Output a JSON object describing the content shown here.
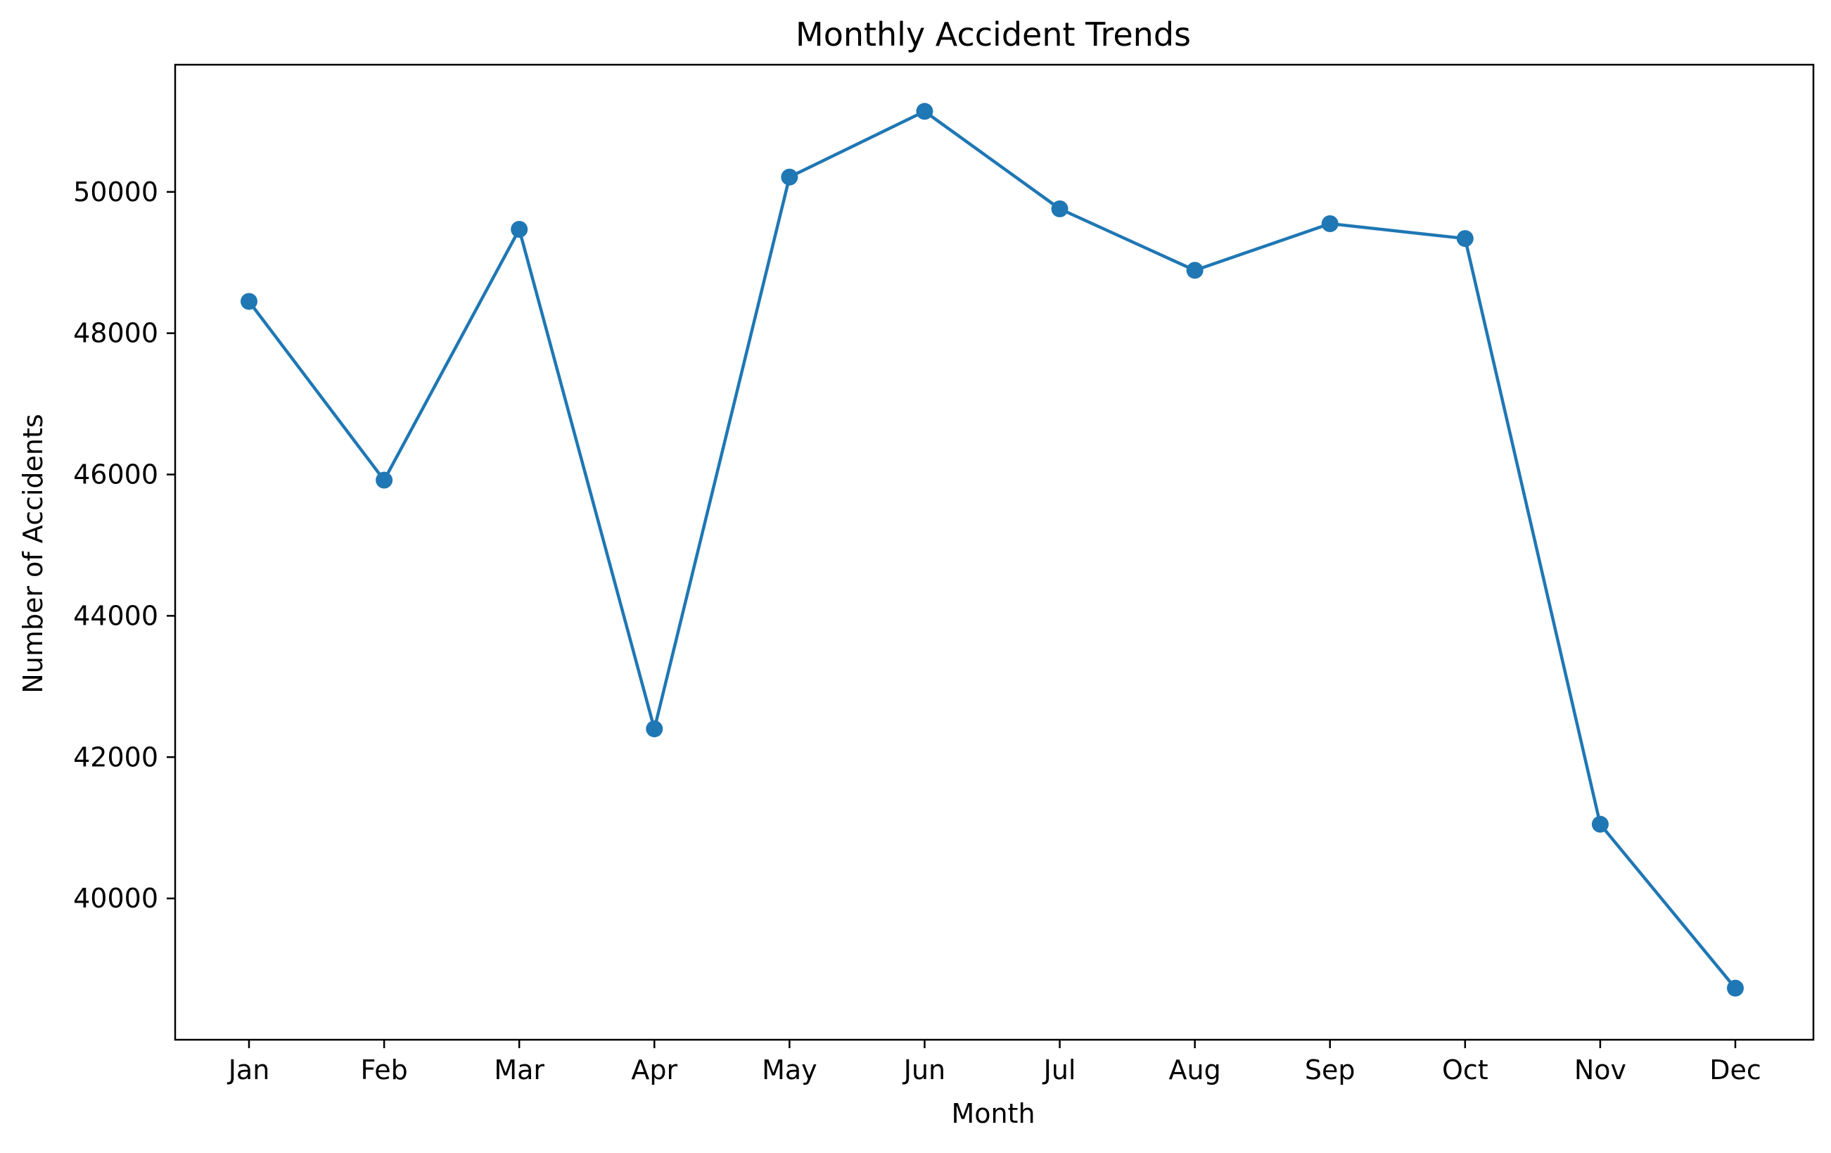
{
  "chart_data": {
    "type": "line",
    "title": "Monthly Accident Trends",
    "xlabel": "Month",
    "ylabel": "Number of Accidents",
    "categories": [
      "Jan",
      "Feb",
      "Mar",
      "Apr",
      "May",
      "Jun",
      "Jul",
      "Aug",
      "Sep",
      "Oct",
      "Nov",
      "Dec"
    ],
    "series": [
      {
        "values": [
          48450,
          45920,
          49470,
          42400,
          50210,
          51140,
          49760,
          48890,
          49550,
          49340,
          41050,
          38730
        ]
      }
    ],
    "ylim": [
      38000,
      51800
    ],
    "yticks": [
      40000,
      42000,
      44000,
      46000,
      48000,
      50000
    ],
    "ytick_labels": [
      "40000",
      "42000",
      "44000",
      "46000",
      "48000",
      "50000"
    ],
    "grid": false,
    "legend": "none",
    "colors": {
      "line": "#1f77b4",
      "marker": "#1f77b4",
      "axes": "#000000"
    },
    "marker": "circle"
  }
}
